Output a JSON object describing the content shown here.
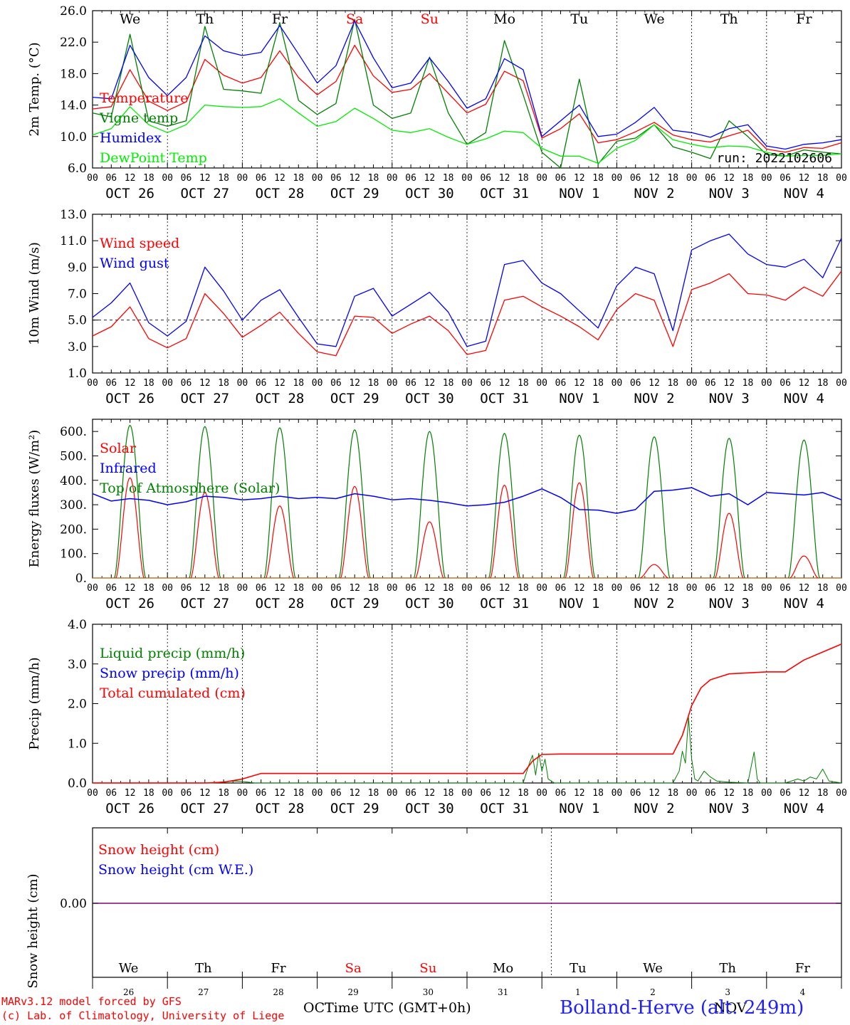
{
  "run_label": "run: 2022102606",
  "footer": {
    "model": "MARv3.12 model forced by GFS",
    "lab": "(c) Lab. of Climatology, University of Liege",
    "xlabel": "Time UTC (GMT+0h)",
    "station": "Bolland-Herve (alt. 249m)",
    "month_oct": "OCT",
    "month_nov": "NOV"
  },
  "days": {
    "weekdays": [
      "We",
      "Th",
      "Fr",
      "Sa",
      "Su",
      "Mo",
      "Tu",
      "We",
      "Th",
      "Fr"
    ],
    "weekend_flags": [
      false,
      false,
      false,
      true,
      true,
      false,
      false,
      false,
      false,
      false
    ],
    "dates": [
      "OCT 26",
      "OCT 27",
      "OCT 28",
      "OCT 29",
      "OCT 30",
      "OCT 31",
      "NOV  1",
      "NOV  2",
      "NOV  3",
      "NOV  4"
    ],
    "day_numbers": [
      "26",
      "27",
      "28",
      "29",
      "30",
      "31",
      "1",
      "2",
      "3",
      "4"
    ],
    "hour_ticks": [
      "00",
      "06",
      "12",
      "18"
    ],
    "final_tick": "00"
  },
  "colors": {
    "red": "#ff0000",
    "green": "#008000",
    "blue": "#0000ff",
    "lightgreen": "#00ee00",
    "weekend": "#ff0000",
    "purple": "#800080"
  },
  "chart_data": [
    {
      "type": "line",
      "ylabel": "2m Temp. (°C)",
      "ylim": [
        6.0,
        26.0
      ],
      "yticks": [
        "26.0",
        "22.0",
        "18.0",
        "14.0",
        "10.0",
        "6.0"
      ],
      "legend": [
        "Temperature",
        "Vigne temp",
        "Humidex",
        "DewPoint Temp"
      ],
      "x_hours": [
        0,
        6,
        12,
        18,
        24,
        30,
        36,
        42,
        48,
        54,
        60,
        66,
        72,
        78,
        84,
        90,
        96,
        102,
        108,
        114,
        120,
        126,
        132,
        138,
        144,
        150,
        156,
        162,
        168,
        174,
        180,
        186,
        192,
        198,
        204,
        210,
        216,
        222,
        228,
        234,
        240
      ],
      "series": [
        {
          "name": "Temperature",
          "color": "red",
          "values": [
            13.5,
            13.8,
            18.5,
            14.5,
            13.3,
            14.4,
            19.8,
            17.8,
            16.8,
            17.5,
            20.9,
            17.5,
            15.3,
            17.0,
            21.6,
            17.7,
            15.6,
            16.0,
            18.0,
            15.5,
            13.0,
            14.1,
            18.3,
            17.1,
            9.8,
            11.0,
            12.9,
            9.2,
            9.6,
            10.6,
            11.8,
            10.2,
            9.6,
            9.3,
            10.1,
            10.8,
            8.4,
            8.0,
            8.6,
            8.5,
            9.2
          ]
        },
        {
          "name": "Vigne temp",
          "color": "green",
          "values": [
            13.0,
            12.5,
            23.0,
            12.0,
            11.3,
            12.0,
            24.0,
            16.0,
            15.8,
            15.5,
            24.5,
            14.6,
            12.8,
            14.2,
            24.9,
            14.0,
            12.3,
            13.0,
            20.1,
            13.0,
            9.0,
            10.5,
            22.2,
            15.3,
            8.0,
            6.0,
            17.3,
            6.5,
            9.4,
            9.8,
            11.5,
            8.7,
            8.0,
            7.2,
            12.0,
            10.0,
            7.7,
            7.5,
            8.3,
            8.0,
            7.8
          ]
        },
        {
          "name": "Humidex",
          "color": "blue",
          "values": [
            15.0,
            14.8,
            21.6,
            17.5,
            15.2,
            17.5,
            22.8,
            20.9,
            20.3,
            20.7,
            24.1,
            20.5,
            16.8,
            19.0,
            24.7,
            20.0,
            16.2,
            16.8,
            20.0,
            17.0,
            13.6,
            14.8,
            19.9,
            18.5,
            10.0,
            12.0,
            14.0,
            10.0,
            10.3,
            11.8,
            13.7,
            10.8,
            10.5,
            9.9,
            11.0,
            11.5,
            8.8,
            8.4,
            9.0,
            9.2,
            9.6
          ]
        },
        {
          "name": "DewPoint Temp",
          "color": "lightgreen",
          "values": [
            10.2,
            11.0,
            13.8,
            11.5,
            10.5,
            11.5,
            14.0,
            13.8,
            13.7,
            13.8,
            14.8,
            13.0,
            11.3,
            11.9,
            13.6,
            12.3,
            10.8,
            10.5,
            11.0,
            9.9,
            9.0,
            9.7,
            10.7,
            10.5,
            8.5,
            7.5,
            7.5,
            6.6,
            8.5,
            9.5,
            11.5,
            9.6,
            9.0,
            8.6,
            8.8,
            8.7,
            8.0,
            7.5,
            7.6,
            7.6,
            7.8
          ]
        }
      ]
    },
    {
      "type": "line",
      "ylabel": "10m Wind (m/s)",
      "ylim": [
        1.0,
        13.0
      ],
      "yticks": [
        "13.0",
        "11.0",
        "9.0",
        "7.0",
        "5.0",
        "3.0",
        "1.0"
      ],
      "reference_line": 5.0,
      "legend": [
        "Wind speed",
        "Wind gust"
      ],
      "x_hours": [
        0,
        6,
        12,
        18,
        24,
        30,
        36,
        42,
        48,
        54,
        60,
        66,
        72,
        78,
        84,
        90,
        96,
        102,
        108,
        114,
        120,
        126,
        132,
        138,
        144,
        150,
        156,
        162,
        168,
        174,
        180,
        186,
        192,
        198,
        204,
        210,
        216,
        222,
        228,
        234,
        240
      ],
      "series": [
        {
          "name": "Wind speed",
          "color": "red",
          "values": [
            3.8,
            4.5,
            6.0,
            3.6,
            2.9,
            3.6,
            7.0,
            5.5,
            3.7,
            4.6,
            5.6,
            4.0,
            2.6,
            2.3,
            5.3,
            5.2,
            4.0,
            4.7,
            5.3,
            4.2,
            2.4,
            2.7,
            6.5,
            6.8,
            6.0,
            5.3,
            4.5,
            3.5,
            5.8,
            7.0,
            6.5,
            3.0,
            7.3,
            7.8,
            8.5,
            7.0,
            6.9,
            6.5,
            7.5,
            6.8,
            8.7
          ]
        },
        {
          "name": "Wind gust",
          "color": "blue",
          "values": [
            5.2,
            6.3,
            7.8,
            4.8,
            3.8,
            4.9,
            9.0,
            7.2,
            5.0,
            6.5,
            7.3,
            5.2,
            3.2,
            3.0,
            6.8,
            7.4,
            5.3,
            6.2,
            7.1,
            5.6,
            3.0,
            3.4,
            9.2,
            9.5,
            7.8,
            7.0,
            5.7,
            4.4,
            7.6,
            9.0,
            8.5,
            4.2,
            10.3,
            11.0,
            11.5,
            10.0,
            9.2,
            9.0,
            9.6,
            8.2,
            11.2
          ]
        }
      ]
    },
    {
      "type": "line",
      "ylabel": "Energy fluxes (W/m²)",
      "ylim": [
        0,
        650
      ],
      "yticks": [
        "600.",
        "500.",
        "400.",
        "300.",
        "200.",
        "100.",
        "0."
      ],
      "legend": [
        "Solar",
        "Infrared",
        "Top of Atmosphere (Solar)"
      ],
      "toa_peaks": [
        625,
        620,
        615,
        607,
        600,
        592,
        585,
        578,
        572,
        565
      ],
      "solar_peaks": [
        410,
        350,
        295,
        375,
        230,
        380,
        390,
        55,
        265,
        90
      ],
      "infrared": {
        "x_hours": [
          0,
          6,
          12,
          18,
          24,
          30,
          36,
          42,
          48,
          54,
          60,
          66,
          72,
          78,
          84,
          90,
          96,
          102,
          108,
          114,
          120,
          126,
          132,
          138,
          144,
          150,
          156,
          162,
          168,
          174,
          180,
          186,
          192,
          198,
          204,
          210,
          216,
          222,
          228,
          234,
          240
        ],
        "values": [
          345,
          315,
          325,
          318,
          300,
          312,
          335,
          330,
          320,
          325,
          335,
          325,
          330,
          325,
          345,
          335,
          320,
          325,
          318,
          308,
          295,
          300,
          310,
          335,
          365,
          330,
          280,
          278,
          265,
          280,
          355,
          360,
          370,
          335,
          345,
          300,
          350,
          345,
          340,
          350,
          320
        ]
      }
    },
    {
      "type": "line",
      "ylabel": "Precip (mm/h)",
      "ylim": [
        0.0,
        4.0
      ],
      "yticks": [
        "4.0",
        "3.0",
        "2.0",
        "1.0",
        "0.0"
      ],
      "legend": [
        "Liquid precip (mm/h)",
        "Snow precip (mm/h)",
        "Total cumulated (cm)"
      ],
      "cumulated": {
        "x_hours": [
          0,
          36,
          42,
          48,
          54,
          60,
          66,
          72,
          120,
          138,
          141,
          144,
          150,
          162,
          186,
          189,
          192,
          195,
          198,
          204,
          216,
          222,
          228,
          234,
          240
        ],
        "values": [
          0,
          0,
          0.02,
          0.1,
          0.24,
          0.24,
          0.24,
          0.24,
          0.24,
          0.24,
          0.55,
          0.72,
          0.73,
          0.73,
          0.73,
          1.2,
          1.95,
          2.4,
          2.6,
          2.75,
          2.8,
          2.8,
          3.1,
          3.3,
          3.5
        ]
      },
      "liquid": {
        "x_hours": [
          0,
          38,
          42,
          46,
          48,
          50,
          52,
          138,
          140,
          141,
          142,
          143,
          144,
          145,
          146,
          147,
          148,
          186,
          188,
          189,
          190,
          191,
          192,
          193,
          194,
          196,
          198,
          200,
          204,
          210,
          212,
          213,
          214,
          216,
          222,
          226,
          228,
          230,
          232,
          234,
          236,
          240
        ],
        "values": [
          0,
          0,
          0.03,
          0.05,
          0.04,
          0.02,
          0,
          0,
          0.5,
          0.7,
          0.2,
          0.75,
          0.3,
          0.6,
          0.1,
          0.05,
          0,
          0,
          0.3,
          0.8,
          0.5,
          1.65,
          0.6,
          0.1,
          0.05,
          0.3,
          0.15,
          0.05,
          0.02,
          0,
          0.78,
          0.1,
          0,
          0,
          0,
          0.1,
          0.05,
          0.15,
          0.1,
          0.35,
          0.05,
          0
        ]
      }
    },
    {
      "type": "line",
      "ylabel": "Snow height (cm)",
      "ytick": "0.00",
      "legend": [
        "Snow height (cm)",
        "Snow height (cm W.E.)"
      ],
      "series": [
        {
          "name": "Snow height (cm)",
          "values": [
            0,
            0
          ]
        },
        {
          "name": "Snow height (cm W.E.)",
          "values": [
            0,
            0
          ]
        }
      ]
    }
  ]
}
